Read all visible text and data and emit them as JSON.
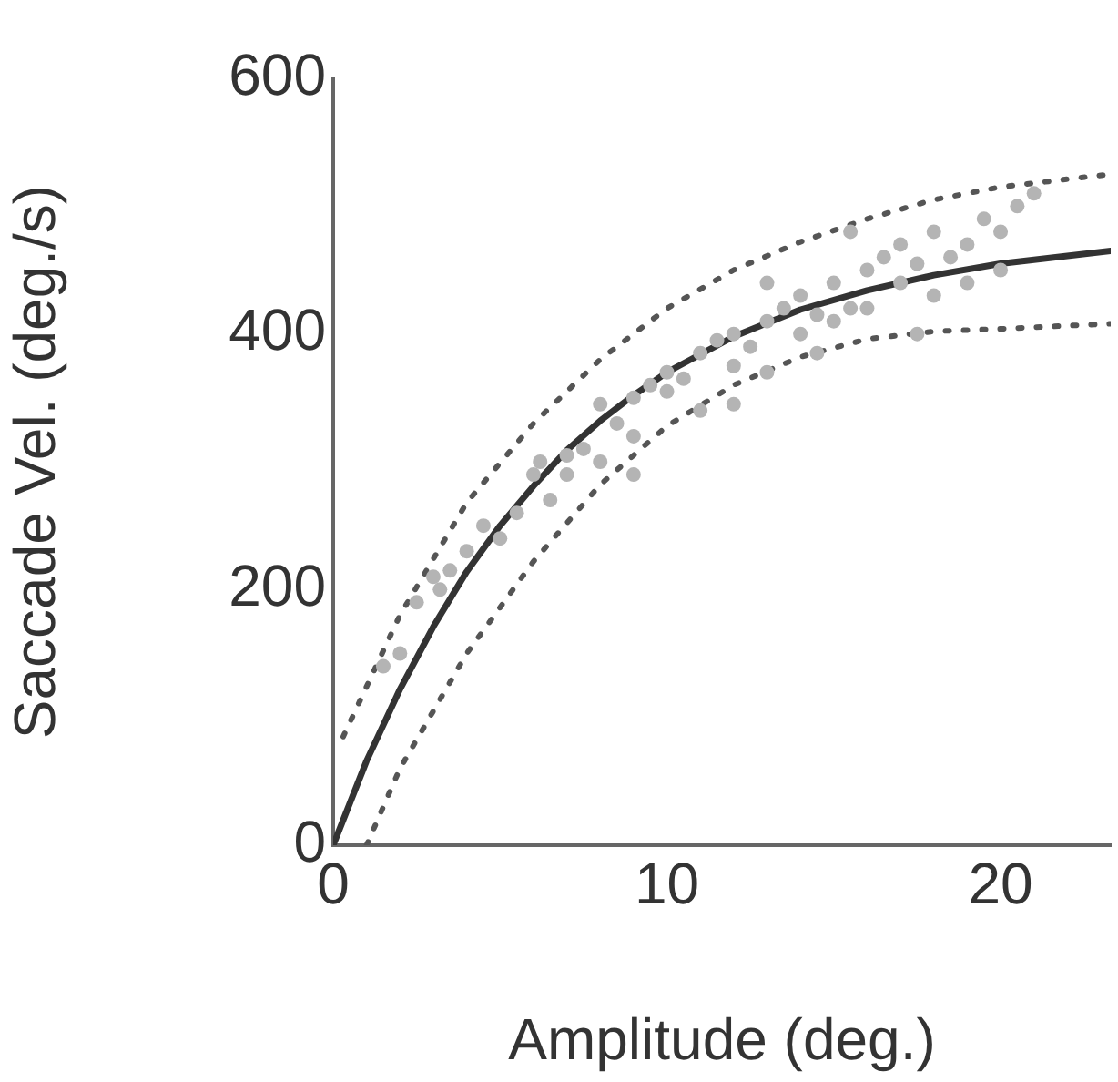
{
  "chart_data": {
    "type": "scatter",
    "xlabel": "Amplitude (deg.)",
    "ylabel": "Saccade Vel. (deg./s)",
    "xlim": [
      0,
      23.3
    ],
    "xticks": [
      0,
      10,
      20
    ],
    "ylim": [
      0,
      600
    ],
    "yticks": [
      0,
      200,
      400,
      600
    ],
    "legend": false,
    "marker": "circle",
    "series": [
      {
        "color": "#b4b4b4",
        "x": [
          1.5,
          2,
          2.5,
          3,
          3.2,
          3.5,
          4,
          4.5,
          5,
          5.5,
          6,
          6.2,
          6.5,
          7,
          7,
          7.5,
          8,
          8,
          8.5,
          9,
          9,
          9.5,
          10,
          10,
          10.5,
          11,
          11,
          11.5,
          12,
          12,
          12.5,
          13,
          13,
          13.5,
          14,
          14,
          14.5,
          15,
          15,
          15.5,
          15.5,
          16,
          16,
          16.5,
          17,
          17,
          17.5,
          18,
          18,
          18.5,
          19,
          19,
          19.5,
          20,
          20.5,
          21,
          20,
          12,
          9,
          17.5,
          14.5,
          13
        ],
        "values": [
          140,
          150,
          190,
          210,
          200,
          215,
          230,
          250,
          240,
          260,
          290,
          300,
          270,
          305,
          290,
          310,
          345,
          300,
          330,
          350,
          320,
          360,
          370,
          355,
          365,
          385,
          340,
          395,
          400,
          375,
          390,
          410,
          370,
          420,
          430,
          400,
          415,
          440,
          410,
          420,
          480,
          450,
          420,
          460,
          440,
          470,
          455,
          430,
          480,
          460,
          470,
          440,
          490,
          480,
          500,
          510,
          450,
          345,
          290,
          400,
          385,
          440
        ]
      },
      {
        "type": "line",
        "color": "#333333",
        "line_style": "solid",
        "marker": "none",
        "x": [
          0,
          1,
          2,
          3,
          4,
          5,
          6,
          7,
          8,
          9,
          10,
          12,
          14,
          16,
          18,
          20,
          22,
          23.3
        ],
        "values": [
          0,
          66,
          122,
          171,
          214,
          250,
          281,
          309,
          332,
          352,
          370,
          398,
          419,
          434,
          446,
          455,
          461,
          465
        ]
      },
      {
        "type": "line",
        "color": "#555555",
        "line_style": "dotted",
        "marker": "none",
        "x": [
          0.3,
          2,
          4,
          6,
          8,
          10,
          12,
          14,
          16,
          18,
          20,
          23.3
        ],
        "values": [
          85,
          180,
          268,
          330,
          380,
          420,
          450,
          472,
          490,
          505,
          515,
          525
        ]
      },
      {
        "type": "line",
        "color": "#555555",
        "line_style": "dotted",
        "marker": "none",
        "x": [
          1,
          2,
          4,
          6,
          8,
          10,
          12,
          14,
          16,
          18,
          20,
          23.3
        ],
        "values": [
          0,
          60,
          150,
          222,
          282,
          328,
          360,
          382,
          396,
          402,
          404,
          408
        ]
      }
    ]
  }
}
